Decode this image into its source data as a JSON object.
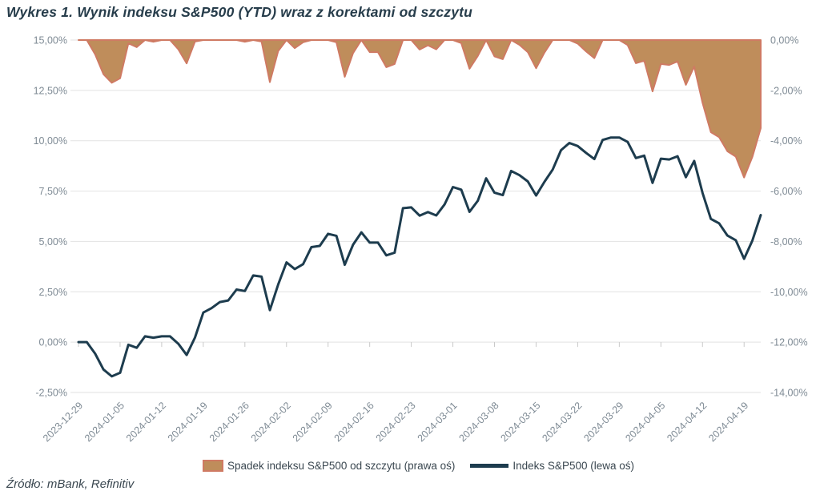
{
  "title": "Wykres 1. Wynik indeksu S&P500 (YTD) wraz z korektami od szczytu",
  "source": "Źródło: mBank, Refinitiv",
  "legend": [
    {
      "label": "Spadek indeksu S&P500 od szczytu (prawa oś)",
      "type": "area",
      "fill": "#bf8d5b",
      "stroke": "#cf7a63"
    },
    {
      "label": "Indeks S&P500 (lewa oś)",
      "type": "line",
      "color": "#1d3c4e"
    }
  ],
  "colors": {
    "line": "#1d3c4e",
    "area_fill": "#bf8d5b",
    "area_stroke": "#cf7a63",
    "gridline": "#e2e2e2",
    "axis_text": "#7f8b95",
    "tick": "#c9c9c9"
  },
  "chart_data": {
    "type": "line",
    "title": "Wykres 1. Wynik indeksu S&P500 (YTD) wraz z korektami od szczytu",
    "grid": "horizontal",
    "legend_position": "bottom",
    "left_axis": {
      "min": -2.5,
      "max": 15,
      "tick_values": [
        15,
        12.5,
        10,
        7.5,
        5,
        2.5,
        0,
        -2.5
      ],
      "tick_labels": [
        "15,00%",
        "12,50%",
        "10,00%",
        "7,50%",
        "5,00%",
        "2,50%",
        "0,00%",
        "-2,50%"
      ]
    },
    "right_axis": {
      "min": -14,
      "max": 0,
      "tick_values": [
        0,
        -2,
        -4,
        -6,
        -8,
        -10,
        -12,
        -14
      ],
      "tick_labels": [
        "0,00%",
        "-2,00%",
        "-4,00%",
        "-6,00%",
        "-8,00%",
        "-10,00%",
        "-12,00%",
        "-14,00%"
      ]
    },
    "x_label_indices": [
      0,
      5,
      10,
      15,
      20,
      25,
      30,
      35,
      40,
      45,
      50,
      55,
      60,
      65,
      70,
      75,
      80
    ],
    "x_labels": [
      "2023-12-29",
      "2024-01-05",
      "2024-01-12",
      "2024-01-19",
      "2024-01-26",
      "2024-02-02",
      "2024-02-09",
      "2024-02-16",
      "2024-02-23",
      "2024-03-01",
      "2024-03-08",
      "2024-03-15",
      "2024-03-22",
      "2024-03-29",
      "2024-04-05",
      "2024-04-12",
      "2024-04-19"
    ],
    "x": [
      "2023-12-29",
      "2024-01-01",
      "2024-01-02",
      "2024-01-03",
      "2024-01-04",
      "2024-01-05",
      "2024-01-08",
      "2024-01-09",
      "2024-01-10",
      "2024-01-11",
      "2024-01-12",
      "2024-01-15",
      "2024-01-16",
      "2024-01-17",
      "2024-01-18",
      "2024-01-19",
      "2024-01-22",
      "2024-01-23",
      "2024-01-24",
      "2024-01-25",
      "2024-01-26",
      "2024-01-29",
      "2024-01-30",
      "2024-01-31",
      "2024-02-01",
      "2024-02-02",
      "2024-02-05",
      "2024-02-06",
      "2024-02-07",
      "2024-02-08",
      "2024-02-09",
      "2024-02-12",
      "2024-02-13",
      "2024-02-14",
      "2024-02-15",
      "2024-02-16",
      "2024-02-19",
      "2024-02-20",
      "2024-02-21",
      "2024-02-22",
      "2024-02-23",
      "2024-02-26",
      "2024-02-27",
      "2024-02-28",
      "2024-02-29",
      "2024-03-01",
      "2024-03-04",
      "2024-03-05",
      "2024-03-06",
      "2024-03-07",
      "2024-03-08",
      "2024-03-11",
      "2024-03-12",
      "2024-03-13",
      "2024-03-14",
      "2024-03-15",
      "2024-03-18",
      "2024-03-19",
      "2024-03-20",
      "2024-03-21",
      "2024-03-22",
      "2024-03-25",
      "2024-03-26",
      "2024-03-27",
      "2024-03-28",
      "2024-03-29",
      "2024-04-01",
      "2024-04-02",
      "2024-04-03",
      "2024-04-04",
      "2024-04-05",
      "2024-04-08",
      "2024-04-09",
      "2024-04-10",
      "2024-04-11",
      "2024-04-12",
      "2024-04-15",
      "2024-04-16",
      "2024-04-17",
      "2024-04-18",
      "2024-04-19",
      "2024-04-22",
      "2024-04-23"
    ],
    "series": [
      {
        "name": "Indeks S&P500 (lewa oś)",
        "axis": "left",
        "render": "line",
        "values": [
          0.0,
          0.0,
          -0.57,
          -1.36,
          -1.7,
          -1.52,
          -0.13,
          -0.28,
          0.29,
          0.22,
          0.29,
          0.29,
          -0.08,
          -0.64,
          0.23,
          1.47,
          1.69,
          1.99,
          2.07,
          2.61,
          2.54,
          3.31,
          3.25,
          1.59,
          2.86,
          3.96,
          3.63,
          3.87,
          4.72,
          4.78,
          5.38,
          5.28,
          3.84,
          4.84,
          5.45,
          4.94,
          4.94,
          4.31,
          4.44,
          6.65,
          6.69,
          6.28,
          6.46,
          6.29,
          6.84,
          7.7,
          7.57,
          6.47,
          7.02,
          8.13,
          7.42,
          7.3,
          8.5,
          8.29,
          7.98,
          7.28,
          7.96,
          8.57,
          9.53,
          9.89,
          9.74,
          9.4,
          9.09,
          10.04,
          10.16,
          10.16,
          9.94,
          9.14,
          9.26,
          7.91,
          9.11,
          9.07,
          9.23,
          8.19,
          9.0,
          7.41,
          6.12,
          5.9,
          5.29,
          5.06,
          4.14,
          5.05,
          6.31
        ]
      },
      {
        "name": "Spadek indeksu S&P500 od szczytu (prawa oś)",
        "axis": "right",
        "render": "area",
        "values": [
          0.0,
          0.0,
          -0.57,
          -1.36,
          -1.7,
          -1.52,
          -0.13,
          -0.28,
          0.0,
          -0.07,
          0.0,
          0.0,
          -0.37,
          -0.93,
          -0.06,
          0.0,
          0.0,
          0.0,
          0.0,
          0.0,
          -0.07,
          0.0,
          -0.06,
          -1.67,
          -0.44,
          0.0,
          -0.32,
          -0.09,
          0.0,
          0.0,
          0.0,
          -0.09,
          -1.46,
          -0.52,
          0.0,
          -0.48,
          -0.48,
          -1.08,
          -0.95,
          0.0,
          0.0,
          -0.38,
          -0.21,
          -0.37,
          0.0,
          0.0,
          -0.12,
          -1.14,
          -0.63,
          0.0,
          -0.65,
          -0.76,
          0.0,
          -0.19,
          -0.48,
          -1.12,
          -0.5,
          0.0,
          0.0,
          0.0,
          -0.14,
          -0.45,
          -0.72,
          0.0,
          0.0,
          0.0,
          -0.2,
          -0.92,
          -0.82,
          -2.04,
          -0.95,
          -0.99,
          -0.85,
          -1.78,
          -1.05,
          -2.49,
          -3.66,
          -3.86,
          -4.42,
          -4.63,
          -5.46,
          -4.64,
          -3.5
        ]
      }
    ]
  }
}
